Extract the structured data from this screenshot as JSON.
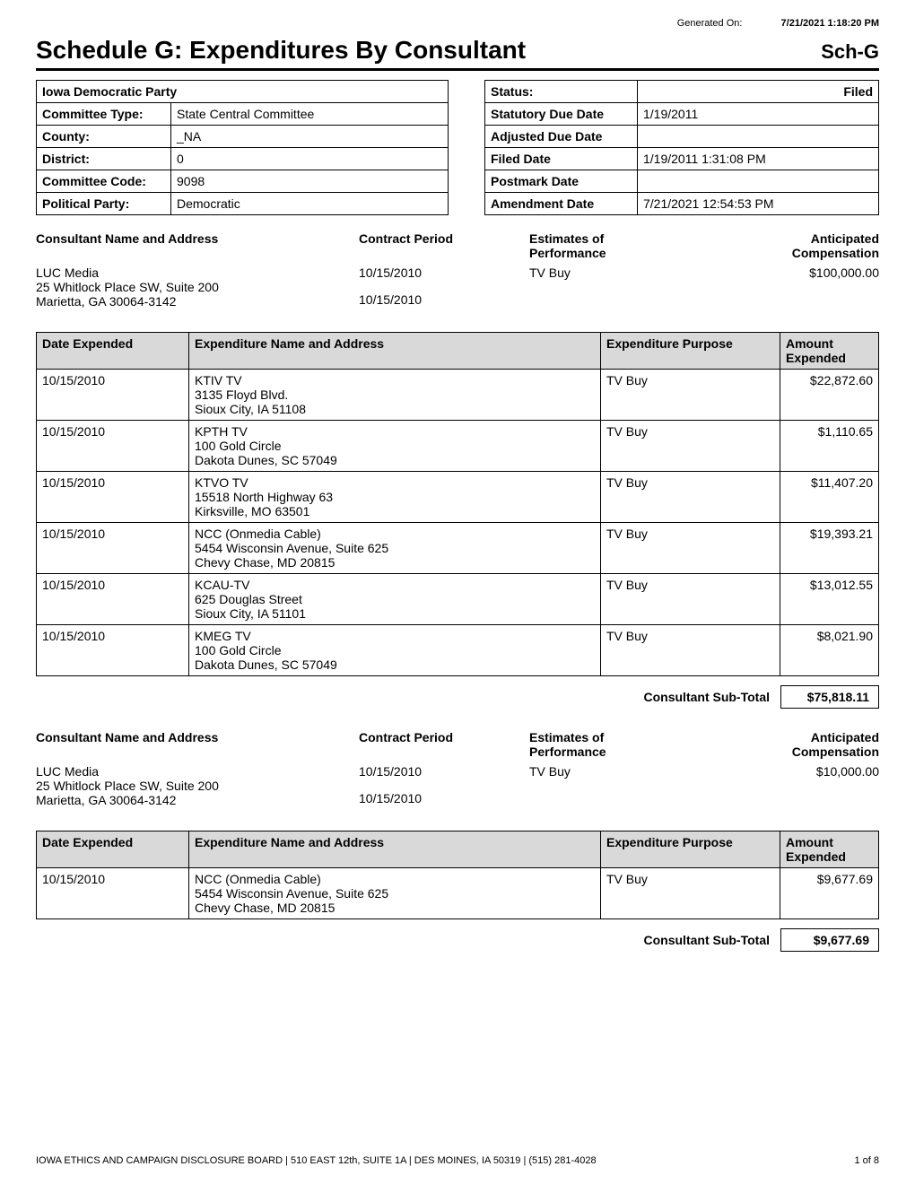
{
  "generated": {
    "label": "Generated On:",
    "value": "7/21/2021 1:18:20 PM"
  },
  "title": "Schedule G: Expenditures By Consultant",
  "sched_code": "Sch-G",
  "info_left": {
    "org_name": "Iowa Democratic Party",
    "rows": [
      {
        "label": "Committee Type:",
        "value": "State Central Committee"
      },
      {
        "label": "County:",
        "value": "_NA"
      },
      {
        "label": "District:",
        "value": "0"
      },
      {
        "label": "Committee Code:",
        "value": "9098"
      },
      {
        "label": "Political Party:",
        "value": "Democratic"
      }
    ]
  },
  "info_right": {
    "status_label": "Status:",
    "status_value": "Filed",
    "rows": [
      {
        "label": "Statutory Due Date",
        "value": "1/19/2011"
      },
      {
        "label": "Adjusted Due Date",
        "value": ""
      },
      {
        "label": "Filed Date",
        "value": "1/19/2011 1:31:08 PM"
      },
      {
        "label": "Postmark Date",
        "value": ""
      },
      {
        "label": "Amendment Date",
        "value": "7/21/2021 12:54:53 PM"
      }
    ]
  },
  "consult_headers": {
    "name": "Consultant Name and Address",
    "period": "Contract Period",
    "est": "Estimates of\nPerformance",
    "comp": "Anticipated\nCompensation"
  },
  "consultants": [
    {
      "name_lines": [
        "LUC Media",
        "25 Whitlock Place SW, Suite 200",
        "Marietta, GA 30064-3142"
      ],
      "period_lines": [
        "10/15/2010",
        "10/15/2010"
      ],
      "est": "TV Buy",
      "comp": "$100,000.00",
      "expenditures": [
        {
          "date": "10/15/2010",
          "name_lines": [
            "KTIV TV",
            "3135 Floyd Blvd.",
            "Sioux City, IA 51108"
          ],
          "purpose": "TV Buy",
          "amount": "$22,872.60"
        },
        {
          "date": "10/15/2010",
          "name_lines": [
            "KPTH TV",
            "100 Gold Circle",
            "Dakota Dunes, SC 57049"
          ],
          "purpose": "TV Buy",
          "amount": "$1,110.65"
        },
        {
          "date": "10/15/2010",
          "name_lines": [
            "KTVO TV",
            "15518 North Highway 63",
            "Kirksville, MO 63501"
          ],
          "purpose": "TV Buy",
          "amount": "$11,407.20"
        },
        {
          "date": "10/15/2010",
          "name_lines": [
            "NCC (Onmedia Cable)",
            "5454 Wisconsin Avenue, Suite 625",
            "Chevy Chase, MD 20815"
          ],
          "purpose": "TV Buy",
          "amount": "$19,393.21"
        },
        {
          "date": "10/15/2010",
          "name_lines": [
            "KCAU-TV",
            "625 Douglas Street",
            "Sioux City, IA 51101"
          ],
          "purpose": "TV Buy",
          "amount": "$13,012.55"
        },
        {
          "date": "10/15/2010",
          "name_lines": [
            "KMEG TV",
            "100 Gold Circle",
            "Dakota Dunes, SC 57049"
          ],
          "purpose": "TV Buy",
          "amount": "$8,021.90"
        }
      ],
      "subtotal": "$75,818.11"
    },
    {
      "name_lines": [
        "LUC Media",
        "25 Whitlock Place SW, Suite 200",
        "Marietta, GA 30064-3142"
      ],
      "period_lines": [
        "10/15/2010",
        "10/15/2010"
      ],
      "est": "TV Buy",
      "comp": "$10,000.00",
      "expenditures": [
        {
          "date": "10/15/2010",
          "name_lines": [
            "NCC (Onmedia Cable)",
            "5454 Wisconsin Avenue, Suite 625",
            "Chevy Chase, MD 20815"
          ],
          "purpose": "TV Buy",
          "amount": "$9,677.69"
        }
      ],
      "subtotal": "$9,677.69"
    }
  ],
  "exp_headers": {
    "date": "Date Expended",
    "name": "Expenditure Name and Address",
    "purpose": "Expenditure Purpose",
    "amount": "Amount\nExpended"
  },
  "subtotal_label": "Consultant Sub-Total",
  "footer": {
    "left": "IOWA ETHICS AND CAMPAIGN DISCLOSURE BOARD | 510 EAST 12th, SUITE 1A | DES MOINES, IA 50319 | (515) 281-4028",
    "right": "1 of 8"
  },
  "styling": {
    "header_bg": "#d9d9d9",
    "border_color": "#000000",
    "font_family": "Arial",
    "body_bg": "#ffffff"
  }
}
